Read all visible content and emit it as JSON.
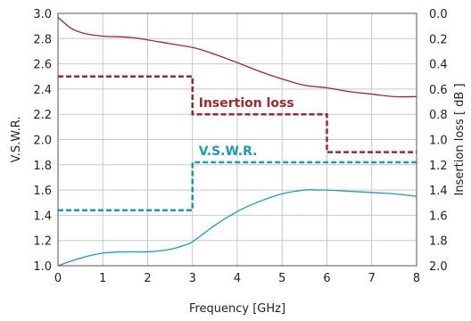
{
  "chart_data": {
    "type": "line",
    "xlabel": "Frequency [GHz]",
    "ylabel_left": "V.S.W.R.",
    "ylabel_right": "Insertion loss [ dB ]",
    "xlim": [
      0,
      8
    ],
    "ylim_left": [
      1.0,
      3.0
    ],
    "ylim_right_inverted": [
      0.0,
      2.0
    ],
    "x_ticks": [
      "0",
      "1",
      "2",
      "3",
      "4",
      "5",
      "6",
      "7",
      "8"
    ],
    "y_left_ticks": [
      "3.0",
      "2.8",
      "2.6",
      "2.4",
      "2.2",
      "2.0",
      "1.8",
      "1.6",
      "1.4",
      "1.2",
      "1.0"
    ],
    "y_right_ticks": [
      "0.0",
      "0.2",
      "0.4",
      "0.6",
      "0.8",
      "1.0",
      "1.2",
      "1.4",
      "1.6",
      "1.8",
      "2.0"
    ],
    "grid": true,
    "series": [
      {
        "name": "Insertion loss",
        "kind": "measured",
        "axis": "right",
        "color": "#a3262b",
        "x": [
          0,
          0.3,
          0.6,
          1,
          1.6,
          2,
          2.5,
          3,
          3.3,
          3.7,
          4,
          4.5,
          5,
          5.5,
          6,
          6.5,
          7,
          7.5,
          8
        ],
        "y": [
          0.03,
          0.12,
          0.16,
          0.18,
          0.19,
          0.21,
          0.24,
          0.27,
          0.3,
          0.35,
          0.39,
          0.46,
          0.52,
          0.57,
          0.59,
          0.62,
          0.64,
          0.66,
          0.66
        ]
      },
      {
        "name": "Insertion loss",
        "kind": "spec",
        "axis": "right",
        "color": "#a3262b",
        "x": [
          0,
          3,
          3,
          6,
          6,
          8
        ],
        "y": [
          0.5,
          0.5,
          0.8,
          0.8,
          1.1,
          1.1
        ]
      },
      {
        "name": "V.S.W.R.",
        "kind": "measured",
        "axis": "left",
        "color": "#1a9bb5",
        "x": [
          0,
          0.5,
          1,
          1.5,
          2,
          2.5,
          2.8,
          3,
          3.5,
          4,
          4.5,
          5,
          5.5,
          5.8,
          6,
          6.5,
          7,
          7.5,
          8
        ],
        "y": [
          1.0,
          1.06,
          1.1,
          1.11,
          1.11,
          1.13,
          1.16,
          1.19,
          1.32,
          1.43,
          1.51,
          1.57,
          1.6,
          1.6,
          1.6,
          1.59,
          1.58,
          1.57,
          1.55
        ]
      },
      {
        "name": "V.S.W.R.",
        "kind": "spec",
        "axis": "left",
        "color": "#1a9bb5",
        "x": [
          0,
          3,
          3,
          8
        ],
        "y": [
          1.44,
          1.44,
          1.82,
          1.82
        ]
      }
    ],
    "annotations": {
      "insertion_loss": "Insertion loss",
      "vswr": "V.S.W.R."
    }
  }
}
